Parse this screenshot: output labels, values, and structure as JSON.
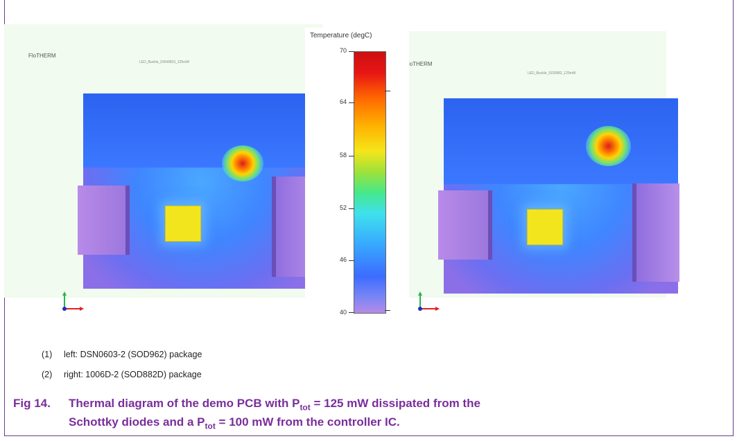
{
  "figure": {
    "left_panel": {
      "brand": "FloTHERM",
      "subtitle": "LED_Buckle_DSN0603_125mW"
    },
    "right_panel": {
      "brand": "FloTHERM",
      "subtitle": "LED_Buckle_SOD882_125mW"
    },
    "scale": {
      "title": "Temperature (degC)",
      "ticks": [
        "70",
        "64",
        "58",
        "52",
        "46",
        "40"
      ]
    }
  },
  "notes": [
    {
      "num": "(1)",
      "text": "left: DSN0603-2 (SOD962) package"
    },
    {
      "num": "(2)",
      "text": "right: 1006D-2 (SOD882D) package"
    }
  ],
  "caption": {
    "label": "Fig 14.",
    "line1_pre": "Thermal diagram of the demo PCB with P",
    "sub1": "tot",
    "line1_post": " = 125 mW dissipated from the",
    "line2_pre": "Schottky diodes and a P",
    "sub2": "tot",
    "line2_post": " = 100 mW from the controller IC."
  },
  "colors": {
    "caption": "#7a2e9b",
    "frame": "#6b3a8f"
  }
}
